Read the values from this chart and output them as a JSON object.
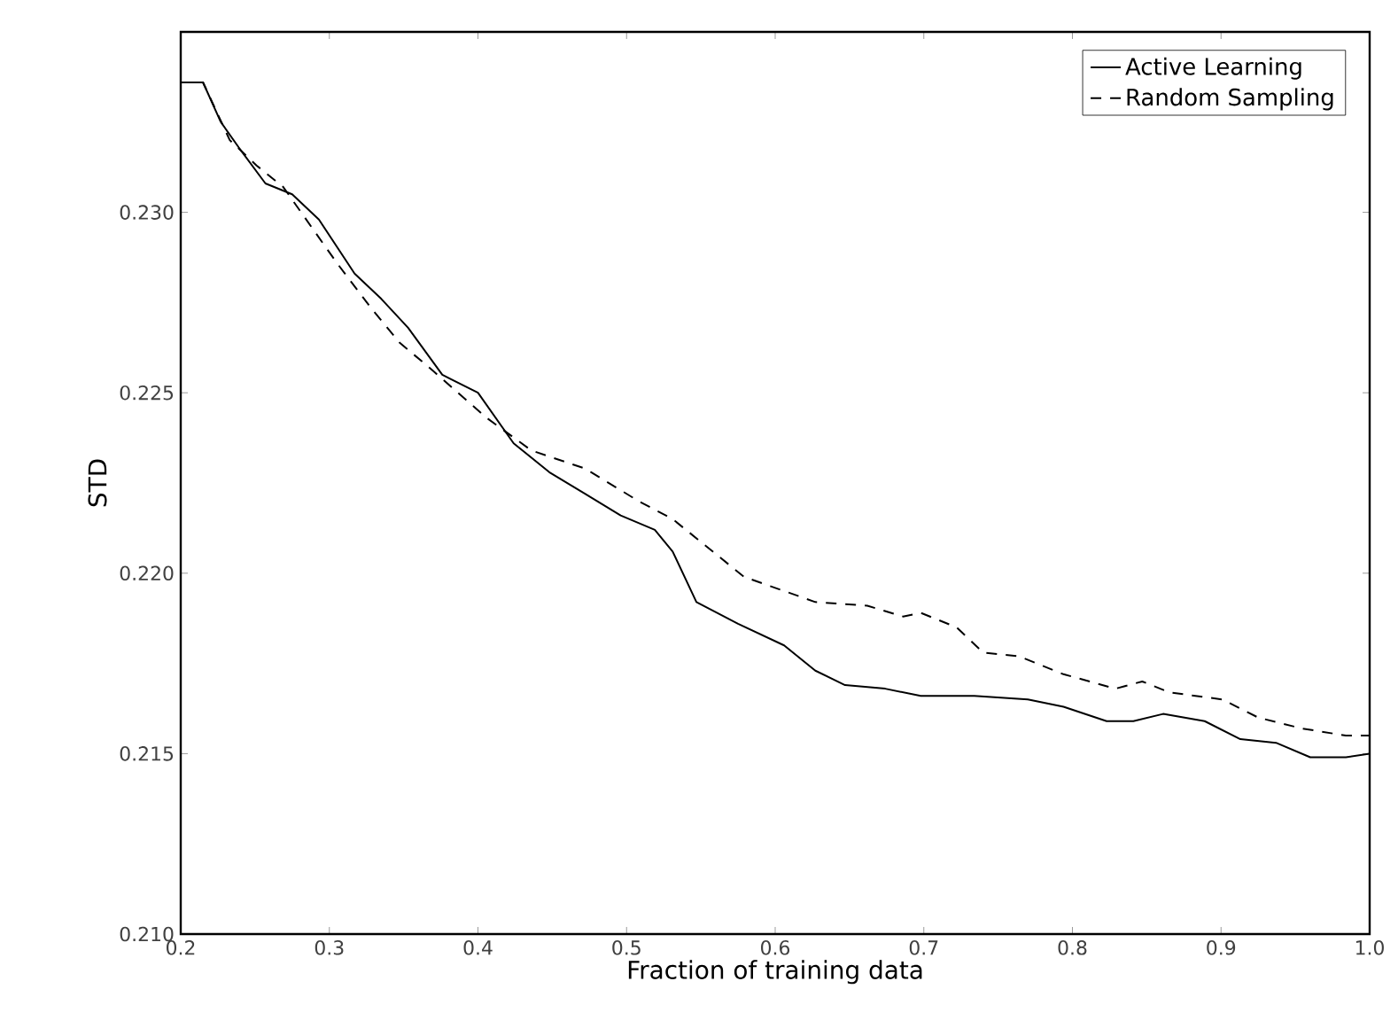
{
  "chart_data": {
    "type": "line",
    "xlabel": "Fraction of training data",
    "ylabel": "STD",
    "xlim": [
      0.2,
      1.0
    ],
    "ylim": [
      0.21,
      0.235
    ],
    "xticks": [
      {
        "value": 0.2,
        "label": "0.2"
      },
      {
        "value": 0.3,
        "label": "0.3"
      },
      {
        "value": 0.4,
        "label": "0.4"
      },
      {
        "value": 0.5,
        "label": "0.5"
      },
      {
        "value": 0.6,
        "label": "0.6"
      },
      {
        "value": 0.7,
        "label": "0.7"
      },
      {
        "value": 0.8,
        "label": "0.8"
      },
      {
        "value": 0.9,
        "label": "0.9"
      },
      {
        "value": 1.0,
        "label": "1.0"
      }
    ],
    "yticks": [
      {
        "value": 0.21,
        "label": "0.210"
      },
      {
        "value": 0.215,
        "label": "0.215"
      },
      {
        "value": 0.22,
        "label": "0.220"
      },
      {
        "value": 0.225,
        "label": "0.225"
      },
      {
        "value": 0.23,
        "label": "0.230"
      }
    ],
    "legend": "top right",
    "grid": false,
    "series": [
      {
        "name": "Active Learning",
        "color": "#000000",
        "line_style": "solid",
        "x": [
          0.2,
          0.215,
          0.227,
          0.239,
          0.257,
          0.275,
          0.293,
          0.317,
          0.335,
          0.353,
          0.376,
          0.4,
          0.424,
          0.448,
          0.472,
          0.496,
          0.519,
          0.531,
          0.547,
          0.575,
          0.606,
          0.627,
          0.647,
          0.674,
          0.698,
          0.734,
          0.77,
          0.794,
          0.823,
          0.841,
          0.861,
          0.889,
          0.913,
          0.937,
          0.96,
          0.984,
          1.0
        ],
        "values": [
          0.2336,
          0.2336,
          0.2325,
          0.2318,
          0.2308,
          0.2305,
          0.2298,
          0.2283,
          0.2276,
          0.2268,
          0.2255,
          0.225,
          0.2236,
          0.2228,
          0.2222,
          0.2216,
          0.2212,
          0.2206,
          0.2192,
          0.2186,
          0.218,
          0.2173,
          0.2169,
          0.2168,
          0.2166,
          0.2166,
          0.2165,
          0.2163,
          0.2159,
          0.2159,
          0.2161,
          0.2159,
          0.2154,
          0.2153,
          0.2149,
          0.2149,
          0.215
        ]
      },
      {
        "name": "Random Sampling",
        "color": "#000000",
        "line_style": "dashed",
        "x": [
          0.2,
          0.215,
          0.233,
          0.251,
          0.269,
          0.305,
          0.329,
          0.347,
          0.37,
          0.406,
          0.436,
          0.472,
          0.508,
          0.531,
          0.579,
          0.627,
          0.662,
          0.686,
          0.698,
          0.722,
          0.74,
          0.764,
          0.794,
          0.829,
          0.847,
          0.865,
          0.901,
          0.925,
          0.954,
          0.984,
          1.0
        ],
        "values": [
          0.2336,
          0.2336,
          0.232,
          0.2313,
          0.2307,
          0.2286,
          0.2273,
          0.2264,
          0.2256,
          0.2243,
          0.2234,
          0.2229,
          0.222,
          0.2215,
          0.2199,
          0.2192,
          0.2191,
          0.2188,
          0.2189,
          0.2185,
          0.2178,
          0.2177,
          0.2172,
          0.2168,
          0.217,
          0.2167,
          0.2165,
          0.216,
          0.2157,
          0.2155,
          0.2155
        ]
      }
    ]
  }
}
